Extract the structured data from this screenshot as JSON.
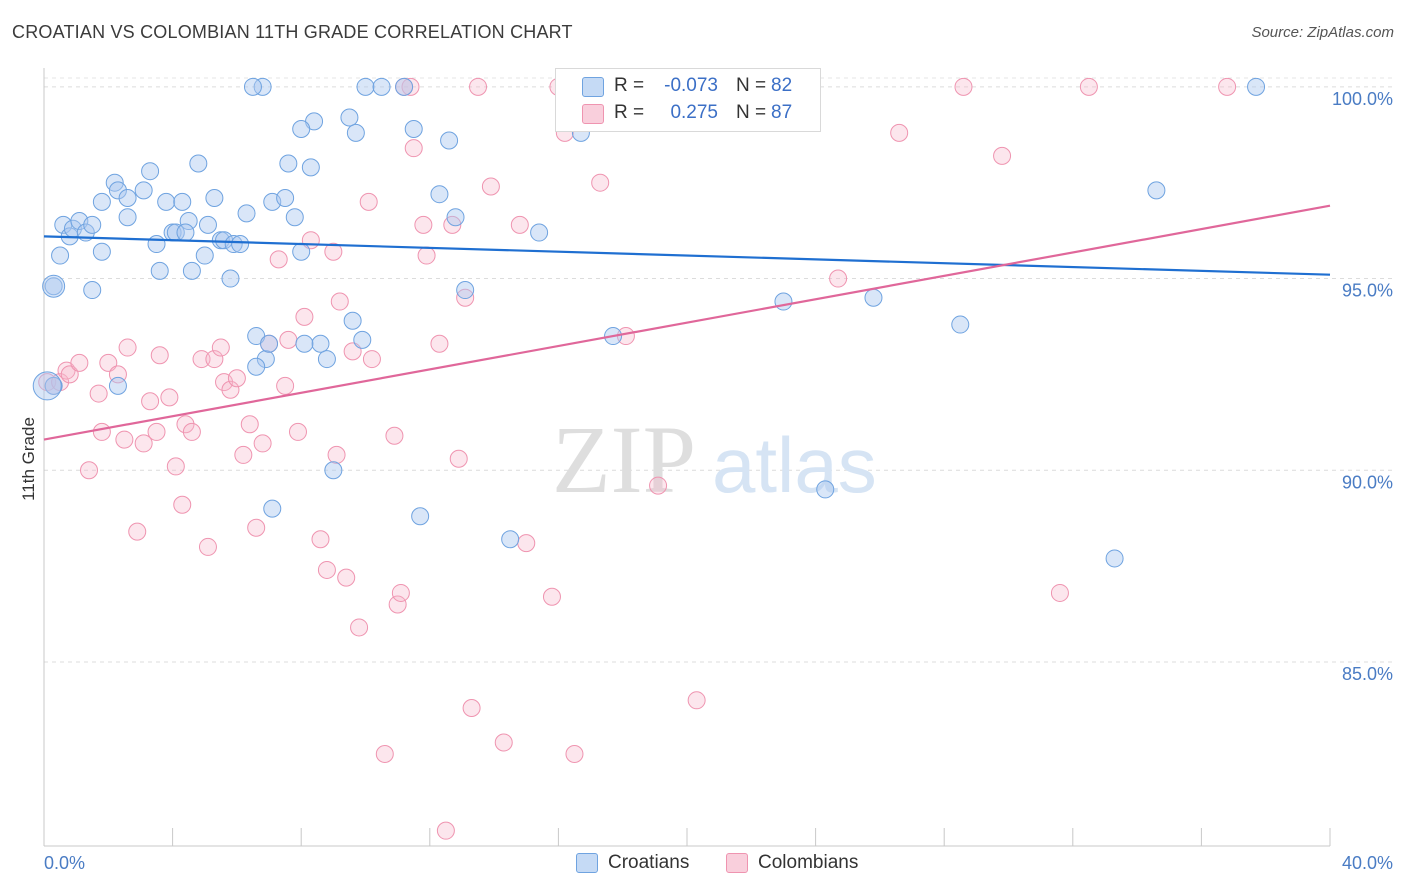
{
  "header": {
    "title": "CROATIAN VS COLOMBIAN 11TH GRADE CORRELATION CHART",
    "source": "Source: ZipAtlas.com"
  },
  "watermark": {
    "zip": "ZIP",
    "atlas": "atlas"
  },
  "legend": {
    "items": [
      {
        "r_label": "R =",
        "r_value": "-0.073",
        "n_label": "N =",
        "n_value": "82",
        "color": "#a9c8f0"
      },
      {
        "r_label": "R =",
        "r_value": "0.275",
        "n_label": "N =",
        "n_value": "87",
        "color": "#f5b8cb"
      }
    ]
  },
  "bottom_legend": {
    "croatians": "Croatians",
    "colombians": "Colombians"
  },
  "chart_data": {
    "type": "scatter",
    "title": "CROATIAN VS COLOMBIAN 11TH GRADE CORRELATION CHART",
    "ylabel": "11th Grade",
    "xlabel": "",
    "xlim": [
      0,
      40
    ],
    "ylim": [
      80.2,
      100.7
    ],
    "x_tick_labels": [
      "0.0%",
      "40.0%"
    ],
    "y_ticks": [
      85,
      90,
      95,
      100
    ],
    "y_tick_labels": [
      "85.0%",
      "90.0%",
      "95.0%",
      "100.0%"
    ],
    "grid": "horizontal dashed",
    "legend_placement": "top-center",
    "colors": {
      "croatians": "#6fa3e0",
      "colombians": "#ef94b0",
      "croatians_line": "#1f6fd1",
      "colombians_line": "#e0679a"
    },
    "series": [
      {
        "name": "Croatians",
        "trend": [
          [
            0,
            96.1
          ],
          [
            40,
            95.1
          ]
        ],
        "points": [
          [
            0.3,
            92.2
          ],
          [
            0.3,
            94.8
          ],
          [
            0.5,
            95.6
          ],
          [
            0.6,
            96.4
          ],
          [
            0.8,
            96.1
          ],
          [
            0.9,
            96.3
          ],
          [
            1.1,
            96.5
          ],
          [
            1.3,
            96.2
          ],
          [
            1.5,
            96.4
          ],
          [
            1.8,
            95.7
          ],
          [
            1.5,
            94.7
          ],
          [
            1.8,
            97.0
          ],
          [
            2.2,
            97.5
          ],
          [
            2.3,
            97.3
          ],
          [
            2.6,
            97.1
          ],
          [
            2.6,
            96.6
          ],
          [
            3.1,
            97.3
          ],
          [
            3.3,
            97.8
          ],
          [
            3.5,
            95.9
          ],
          [
            3.6,
            95.2
          ],
          [
            3.8,
            97.0
          ],
          [
            4.0,
            96.2
          ],
          [
            4.1,
            96.2
          ],
          [
            4.3,
            97.0
          ],
          [
            4.5,
            96.5
          ],
          [
            4.6,
            95.2
          ],
          [
            4.8,
            98.0
          ],
          [
            5.0,
            95.6
          ],
          [
            5.1,
            96.4
          ],
          [
            5.3,
            97.1
          ],
          [
            5.5,
            96.0
          ],
          [
            5.6,
            96.0
          ],
          [
            5.8,
            95.0
          ],
          [
            5.9,
            95.9
          ],
          [
            6.1,
            95.9
          ],
          [
            6.3,
            96.7
          ],
          [
            6.6,
            93.5
          ],
          [
            6.9,
            92.9
          ],
          [
            7.1,
            97.0
          ],
          [
            7.5,
            97.1
          ],
          [
            7.6,
            98.0
          ],
          [
            7.8,
            96.6
          ],
          [
            8.0,
            95.7
          ],
          [
            8.3,
            97.9
          ],
          [
            8.4,
            99.1
          ],
          [
            8.6,
            93.3
          ],
          [
            8.8,
            92.9
          ],
          [
            9.0,
            90.0
          ],
          [
            9.5,
            99.2
          ],
          [
            9.7,
            98.8
          ],
          [
            9.9,
            93.4
          ],
          [
            10.0,
            100.0
          ],
          [
            10.5,
            100.0
          ],
          [
            11.2,
            100.0
          ],
          [
            11.5,
            98.9
          ],
          [
            11.7,
            88.8
          ],
          [
            12.3,
            97.2
          ],
          [
            12.6,
            98.6
          ],
          [
            12.8,
            96.6
          ],
          [
            13.1,
            94.7
          ],
          [
            14.5,
            88.2
          ],
          [
            15.4,
            96.2
          ],
          [
            16.7,
            98.8
          ],
          [
            17.7,
            93.5
          ],
          [
            6.8,
            100.0
          ],
          [
            8.0,
            98.9
          ],
          [
            7.0,
            93.3
          ],
          [
            9.6,
            93.9
          ],
          [
            8.1,
            93.3
          ],
          [
            7.1,
            89.0
          ],
          [
            6.6,
            92.7
          ],
          [
            20.4,
            100.0
          ],
          [
            23.0,
            94.4
          ],
          [
            24.3,
            89.5
          ],
          [
            25.8,
            94.5
          ],
          [
            28.5,
            93.8
          ],
          [
            33.3,
            87.7
          ],
          [
            34.6,
            97.3
          ],
          [
            37.7,
            100.0
          ],
          [
            2.3,
            92.2
          ],
          [
            4.4,
            96.2
          ],
          [
            6.5,
            100.0
          ]
        ]
      },
      {
        "name": "Colombians",
        "trend": [
          [
            0,
            90.8
          ],
          [
            40,
            96.9
          ]
        ],
        "points": [
          [
            0.1,
            92.3
          ],
          [
            0.3,
            92.2
          ],
          [
            0.5,
            92.3
          ],
          [
            0.7,
            92.6
          ],
          [
            0.8,
            92.5
          ],
          [
            1.1,
            92.8
          ],
          [
            1.4,
            90.0
          ],
          [
            1.7,
            92.0
          ],
          [
            1.8,
            91.0
          ],
          [
            2.0,
            92.8
          ],
          [
            2.3,
            92.5
          ],
          [
            2.5,
            90.8
          ],
          [
            2.6,
            93.2
          ],
          [
            2.9,
            88.4
          ],
          [
            3.1,
            90.7
          ],
          [
            3.3,
            91.8
          ],
          [
            3.5,
            91.0
          ],
          [
            3.6,
            93.0
          ],
          [
            3.9,
            91.9
          ],
          [
            4.1,
            90.1
          ],
          [
            4.3,
            89.1
          ],
          [
            4.4,
            91.2
          ],
          [
            4.6,
            91.0
          ],
          [
            4.9,
            92.9
          ],
          [
            5.1,
            88.0
          ],
          [
            5.3,
            92.9
          ],
          [
            5.5,
            93.2
          ],
          [
            5.6,
            92.3
          ],
          [
            5.8,
            92.1
          ],
          [
            6.0,
            92.4
          ],
          [
            6.2,
            90.4
          ],
          [
            6.4,
            91.2
          ],
          [
            6.6,
            88.5
          ],
          [
            6.8,
            90.7
          ],
          [
            7.0,
            93.3
          ],
          [
            7.3,
            95.5
          ],
          [
            7.6,
            93.4
          ],
          [
            7.9,
            91.0
          ],
          [
            8.1,
            94.0
          ],
          [
            8.3,
            96.0
          ],
          [
            8.6,
            88.2
          ],
          [
            8.8,
            87.4
          ],
          [
            9.1,
            90.4
          ],
          [
            9.2,
            94.4
          ],
          [
            9.4,
            87.2
          ],
          [
            9.6,
            93.1
          ],
          [
            9.8,
            85.9
          ],
          [
            10.1,
            97.0
          ],
          [
            10.2,
            92.9
          ],
          [
            10.6,
            82.6
          ],
          [
            10.9,
            90.9
          ],
          [
            11.0,
            86.5
          ],
          [
            11.1,
            86.8
          ],
          [
            11.4,
            100.0
          ],
          [
            11.5,
            98.4
          ],
          [
            11.8,
            96.4
          ],
          [
            11.9,
            95.6
          ],
          [
            12.3,
            93.3
          ],
          [
            12.5,
            80.6
          ],
          [
            12.7,
            96.4
          ],
          [
            12.9,
            90.3
          ],
          [
            13.1,
            94.5
          ],
          [
            13.3,
            83.8
          ],
          [
            13.5,
            100.0
          ],
          [
            13.9,
            97.4
          ],
          [
            14.3,
            82.9
          ],
          [
            14.8,
            96.4
          ],
          [
            15.0,
            88.1
          ],
          [
            16.0,
            100.0
          ],
          [
            15.8,
            86.7
          ],
          [
            16.2,
            98.8
          ],
          [
            16.5,
            82.6
          ],
          [
            17.3,
            97.5
          ],
          [
            18.1,
            93.5
          ],
          [
            19.1,
            89.6
          ],
          [
            20.3,
            84.0
          ],
          [
            23.8,
            100.0
          ],
          [
            24.7,
            95.0
          ],
          [
            26.6,
            98.8
          ],
          [
            28.6,
            100.0
          ],
          [
            29.8,
            98.2
          ],
          [
            31.6,
            86.8
          ],
          [
            32.5,
            100.0
          ],
          [
            36.8,
            100.0
          ],
          [
            11.2,
            100.0
          ],
          [
            9.0,
            95.7
          ],
          [
            7.5,
            92.2
          ]
        ]
      }
    ]
  }
}
